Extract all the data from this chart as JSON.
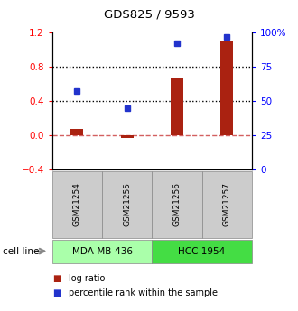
{
  "title": "GDS825 / 9593",
  "samples": [
    "GSM21254",
    "GSM21255",
    "GSM21256",
    "GSM21257"
  ],
  "log_ratio": [
    0.07,
    -0.03,
    0.68,
    1.1
  ],
  "percentile_rank": [
    57,
    45,
    92,
    97
  ],
  "bar_color": "#aa2211",
  "dot_color": "#2233cc",
  "ylim_left": [
    -0.4,
    1.2
  ],
  "ylim_right": [
    0,
    100
  ],
  "left_ticks": [
    -0.4,
    0.0,
    0.4,
    0.8,
    1.2
  ],
  "right_ticks": [
    0,
    25,
    50,
    75,
    100
  ],
  "right_tick_labels": [
    "0",
    "25",
    "50",
    "75",
    "100%"
  ],
  "hline_dotted": [
    0.4,
    0.8
  ],
  "hline_dashed": 0.0,
  "cell_lines": [
    {
      "label": "MDA-MB-436",
      "samples": [
        0,
        1
      ],
      "color": "#aaffaa"
    },
    {
      "label": "HCC 1954",
      "samples": [
        2,
        3
      ],
      "color": "#44dd44"
    }
  ],
  "cell_line_label": "cell line",
  "legend_log_ratio": "log ratio",
  "legend_percentile": "percentile rank within the sample",
  "bar_width": 0.25
}
